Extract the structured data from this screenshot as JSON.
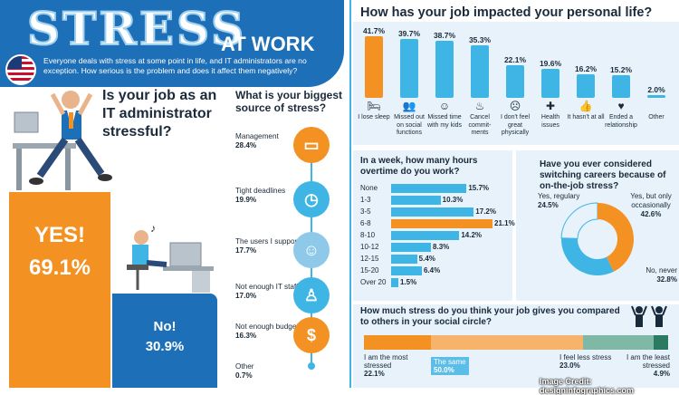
{
  "header": {
    "title_main": "STRESS",
    "title_sub": "AT WORK",
    "subtitle": "Everyone deals with stress at some point in life, and IT administrators are no exception. How serious is the problem and does it affect them negatively?"
  },
  "stressful": {
    "question": "Is your job as an IT administrator stressful?",
    "yes_label": "YES!",
    "yes_value": "69.1%",
    "no_label": "No!",
    "no_value": "30.9%"
  },
  "source": {
    "question": "What is your biggest source of stress?",
    "items": [
      {
        "label": "Management",
        "value": "28.4%",
        "icon": "laptop-icon"
      },
      {
        "label": "Tight deadlines",
        "value": "19.9%",
        "icon": "clock-icon"
      },
      {
        "label": "The users I support",
        "value": "17.7%",
        "icon": "users-icon"
      },
      {
        "label": "Not enough IT staff",
        "value": "17.0%",
        "icon": "person-icon"
      },
      {
        "label": "Not enough budget",
        "value": "16.3%",
        "icon": "money-bag-icon"
      },
      {
        "label": "Other",
        "value": "0.7%",
        "icon": "dot-icon"
      }
    ]
  },
  "impact": {
    "question": "How has your job impacted your personal life?",
    "items": [
      {
        "value": "41.7%",
        "label": "I lose sleep",
        "icon": "bed-icon"
      },
      {
        "value": "39.7%",
        "label": "Missed out on social functions",
        "icon": "people-icon"
      },
      {
        "value": "38.7%",
        "label": "Missed time with my kids",
        "icon": "child-icon"
      },
      {
        "value": "35.3%",
        "label": "Cancel commit-ments",
        "icon": "cake-icon"
      },
      {
        "value": "22.1%",
        "label": "I don't feel great physically",
        "icon": "sad-face-icon"
      },
      {
        "value": "19.6%",
        "label": "Health issues",
        "icon": "health-cross-icon"
      },
      {
        "value": "16.2%",
        "label": "It hasn't at all",
        "icon": "thumbs-up-icon"
      },
      {
        "value": "15.2%",
        "label": "Ended a relationship",
        "icon": "broken-heart-icon"
      },
      {
        "value": "2.0%",
        "label": "Other",
        "icon": "none"
      }
    ]
  },
  "overtime": {
    "question": "In a week, how many hours overtime do you work?",
    "items": [
      {
        "label": "None",
        "value": "15.7%"
      },
      {
        "label": "1-3",
        "value": "10.3%"
      },
      {
        "label": "3-5",
        "value": "17.2%"
      },
      {
        "label": "6-8",
        "value": "21.1%"
      },
      {
        "label": "8-10",
        "value": "14.2%"
      },
      {
        "label": "10-12",
        "value": "8.3%"
      },
      {
        "label": "12-15",
        "value": "5.4%"
      },
      {
        "label": "15-20",
        "value": "6.4%"
      },
      {
        "label": "Over 20",
        "value": "1.5%"
      }
    ]
  },
  "career": {
    "question": "Have you ever considered switching careers because of on-the-job stress?",
    "items": [
      {
        "label": "Yes, regulary",
        "value": "24.5%"
      },
      {
        "label": "Yes, but only occasionally",
        "value": "42.6%"
      },
      {
        "label": "No, never",
        "value": "32.8%"
      }
    ]
  },
  "compare": {
    "question": "How much stress do you think your job gives you compared to others in your social circle?",
    "items": [
      {
        "label": "I am the most stressed",
        "value": "22.1%"
      },
      {
        "label": "The same",
        "value": "50.0%"
      },
      {
        "label": "I feel less stress",
        "value": "23.0%"
      },
      {
        "label": "I am the least stressed",
        "value": "4.9%"
      }
    ]
  },
  "credit": "Image Credit: designinfographics.com",
  "colors": {
    "orange": "#f39223",
    "blue": "#1d6fb8",
    "light_blue": "#3eb5e5",
    "panel": "#e7f2fa"
  },
  "chart_data": [
    {
      "type": "bar",
      "title": "How has your job impacted your personal life?",
      "categories": [
        "I lose sleep",
        "Missed out on social functions",
        "Missed time with my kids",
        "Cancel commitments",
        "I don't feel great physically",
        "Health issues",
        "It hasn't at all",
        "Ended a relationship",
        "Other"
      ],
      "values": [
        41.7,
        39.7,
        38.7,
        35.3,
        22.1,
        19.6,
        16.2,
        15.2,
        2.0
      ]
    },
    {
      "type": "bar",
      "title": "In a week, how many hours overtime do you work?",
      "categories": [
        "None",
        "1-3",
        "3-5",
        "6-8",
        "8-10",
        "10-12",
        "12-15",
        "15-20",
        "Over 20"
      ],
      "values": [
        15.7,
        10.3,
        17.2,
        21.1,
        14.2,
        8.3,
        5.4,
        6.4,
        1.5
      ]
    },
    {
      "type": "pie",
      "title": "Have you ever considered switching careers because of on-the-job stress?",
      "categories": [
        "Yes, regulary",
        "Yes, but only occasionally",
        "No, never"
      ],
      "values": [
        24.5,
        42.6,
        32.8
      ]
    },
    {
      "type": "bar",
      "title": "How much stress do you think your job gives you compared to others in your social circle?",
      "categories": [
        "I am the most stressed",
        "The same",
        "I feel less stress",
        "I am the least stressed"
      ],
      "values": [
        22.1,
        50.0,
        23.0,
        4.9
      ]
    },
    {
      "type": "bar",
      "title": "Is your job as an IT administrator stressful?",
      "categories": [
        "YES!",
        "No!"
      ],
      "values": [
        69.1,
        30.9
      ]
    }
  ]
}
